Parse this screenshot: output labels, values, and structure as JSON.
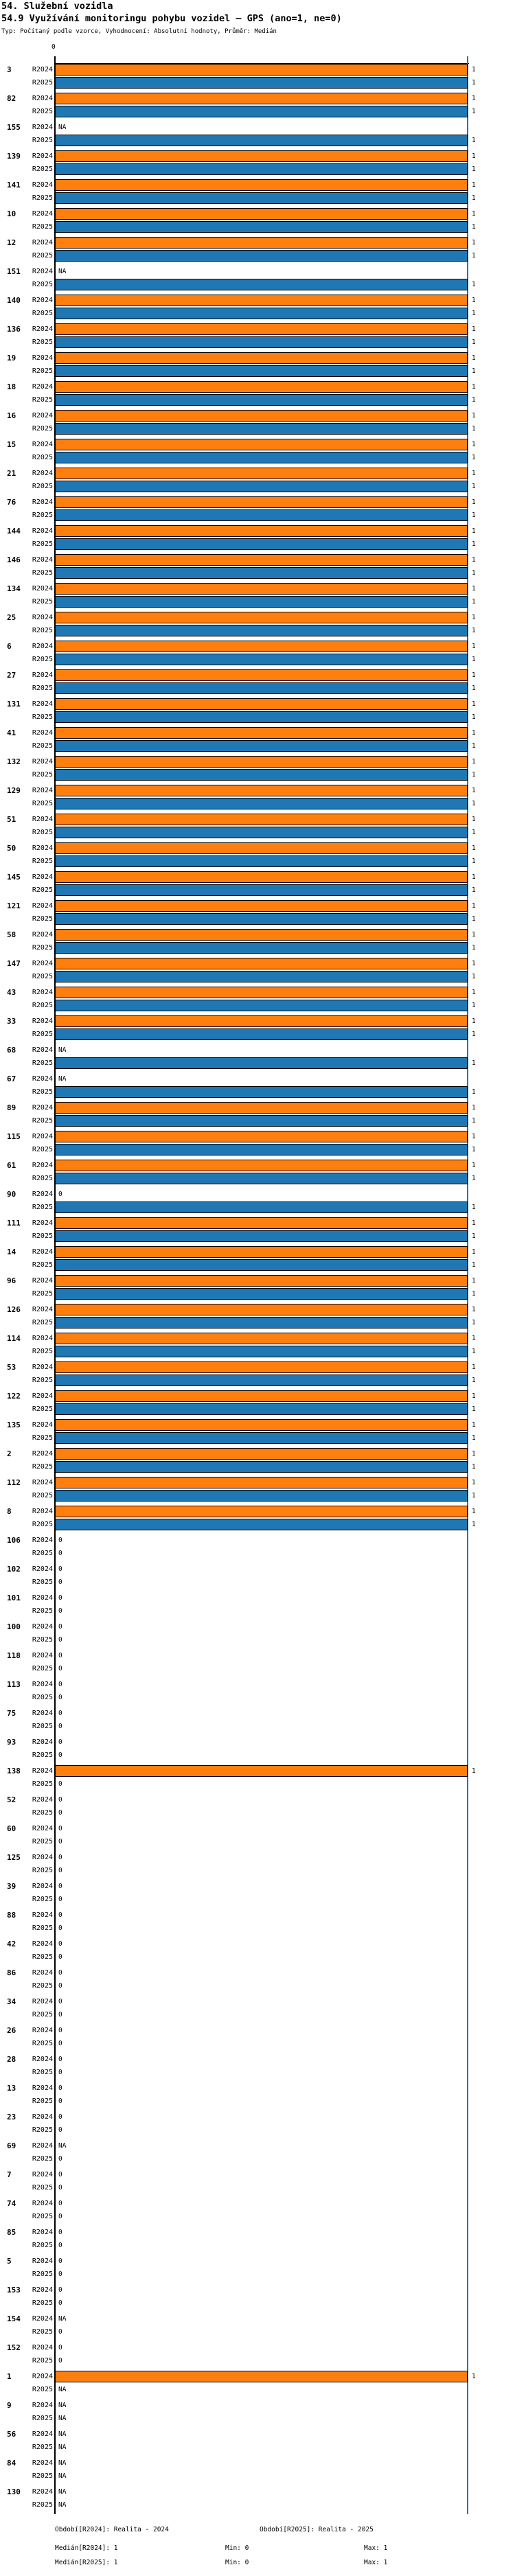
{
  "header": {
    "title": "54. Služební vozidla",
    "subtitle": "54.9 Využívání monitoringu pohybu vozidel – GPS (ano=1, ne=0)",
    "meta": "Typ: Počítaný podle vzorce, Vyhodnocení: Absolutní hodnoty, Průměr: Medián"
  },
  "chart_data": {
    "type": "bar",
    "orientation": "horizontal",
    "title": "54.9 Využívání monitoringu pohybu vozidel – GPS (ano=1, ne=0)",
    "xlabel": "",
    "ylabel": "",
    "xlim": [
      0,
      1
    ],
    "x_ticks": [
      "0"
    ],
    "grid": false,
    "series_labels": [
      "R2024",
      "R2025"
    ],
    "colors": {
      "R2024": "#ff7f0e",
      "R2025": "#1f77b4",
      "median_line": "#1f77b4"
    },
    "median_marker": {
      "R2024": 1,
      "R2025": 1
    },
    "na_text": "NA",
    "groups": [
      {
        "id": "3",
        "R2024": 1,
        "R2025": 1
      },
      {
        "id": "82",
        "R2024": 1,
        "R2025": 1
      },
      {
        "id": "155",
        "R2024": "NA",
        "R2025": 1
      },
      {
        "id": "139",
        "R2024": 1,
        "R2025": 1
      },
      {
        "id": "141",
        "R2024": 1,
        "R2025": 1
      },
      {
        "id": "10",
        "R2024": 1,
        "R2025": 1
      },
      {
        "id": "12",
        "R2024": 1,
        "R2025": 1
      },
      {
        "id": "151",
        "R2024": "NA",
        "R2025": 1
      },
      {
        "id": "140",
        "R2024": 1,
        "R2025": 1
      },
      {
        "id": "136",
        "R2024": 1,
        "R2025": 1
      },
      {
        "id": "19",
        "R2024": 1,
        "R2025": 1
      },
      {
        "id": "18",
        "R2024": 1,
        "R2025": 1
      },
      {
        "id": "16",
        "R2024": 1,
        "R2025": 1
      },
      {
        "id": "15",
        "R2024": 1,
        "R2025": 1
      },
      {
        "id": "21",
        "R2024": 1,
        "R2025": 1
      },
      {
        "id": "76",
        "R2024": 1,
        "R2025": 1
      },
      {
        "id": "144",
        "R2024": 1,
        "R2025": 1
      },
      {
        "id": "146",
        "R2024": 1,
        "R2025": 1
      },
      {
        "id": "134",
        "R2024": 1,
        "R2025": 1
      },
      {
        "id": "25",
        "R2024": 1,
        "R2025": 1
      },
      {
        "id": "6",
        "R2024": 1,
        "R2025": 1
      },
      {
        "id": "27",
        "R2024": 1,
        "R2025": 1
      },
      {
        "id": "131",
        "R2024": 1,
        "R2025": 1
      },
      {
        "id": "41",
        "R2024": 1,
        "R2025": 1
      },
      {
        "id": "132",
        "R2024": 1,
        "R2025": 1
      },
      {
        "id": "129",
        "R2024": 1,
        "R2025": 1
      },
      {
        "id": "51",
        "R2024": 1,
        "R2025": 1
      },
      {
        "id": "50",
        "R2024": 1,
        "R2025": 1
      },
      {
        "id": "145",
        "R2024": 1,
        "R2025": 1
      },
      {
        "id": "121",
        "R2024": 1,
        "R2025": 1
      },
      {
        "id": "58",
        "R2024": 1,
        "R2025": 1
      },
      {
        "id": "147",
        "R2024": 1,
        "R2025": 1
      },
      {
        "id": "43",
        "R2024": 1,
        "R2025": 1
      },
      {
        "id": "33",
        "R2024": 1,
        "R2025": 1
      },
      {
        "id": "68",
        "R2024": "NA",
        "R2025": 1
      },
      {
        "id": "67",
        "R2024": "NA",
        "R2025": 1
      },
      {
        "id": "89",
        "R2024": 1,
        "R2025": 1
      },
      {
        "id": "115",
        "R2024": 1,
        "R2025": 1
      },
      {
        "id": "61",
        "R2024": 1,
        "R2025": 1
      },
      {
        "id": "90",
        "R2024": 0,
        "R2025": 1
      },
      {
        "id": "111",
        "R2024": 1,
        "R2025": 1
      },
      {
        "id": "14",
        "R2024": 1,
        "R2025": 1
      },
      {
        "id": "96",
        "R2024": 1,
        "R2025": 1
      },
      {
        "id": "126",
        "R2024": 1,
        "R2025": 1
      },
      {
        "id": "114",
        "R2024": 1,
        "R2025": 1
      },
      {
        "id": "53",
        "R2024": 1,
        "R2025": 1
      },
      {
        "id": "122",
        "R2024": 1,
        "R2025": 1
      },
      {
        "id": "135",
        "R2024": 1,
        "R2025": 1
      },
      {
        "id": "2",
        "R2024": 1,
        "R2025": 1
      },
      {
        "id": "112",
        "R2024": 1,
        "R2025": 1
      },
      {
        "id": "8",
        "R2024": 1,
        "R2025": 1
      },
      {
        "id": "106",
        "R2024": 0,
        "R2025": 0
      },
      {
        "id": "102",
        "R2024": 0,
        "R2025": 0
      },
      {
        "id": "101",
        "R2024": 0,
        "R2025": 0
      },
      {
        "id": "100",
        "R2024": 0,
        "R2025": 0
      },
      {
        "id": "118",
        "R2024": 0,
        "R2025": 0
      },
      {
        "id": "113",
        "R2024": 0,
        "R2025": 0
      },
      {
        "id": "75",
        "R2024": 0,
        "R2025": 0
      },
      {
        "id": "93",
        "R2024": 0,
        "R2025": 0
      },
      {
        "id": "138",
        "R2024": 1,
        "R2025": 0
      },
      {
        "id": "52",
        "R2024": 0,
        "R2025": 0
      },
      {
        "id": "60",
        "R2024": 0,
        "R2025": 0
      },
      {
        "id": "125",
        "R2024": 0,
        "R2025": 0
      },
      {
        "id": "39",
        "R2024": 0,
        "R2025": 0
      },
      {
        "id": "88",
        "R2024": 0,
        "R2025": 0
      },
      {
        "id": "42",
        "R2024": 0,
        "R2025": 0
      },
      {
        "id": "86",
        "R2024": 0,
        "R2025": 0
      },
      {
        "id": "34",
        "R2024": 0,
        "R2025": 0
      },
      {
        "id": "26",
        "R2024": 0,
        "R2025": 0
      },
      {
        "id": "28",
        "R2024": 0,
        "R2025": 0
      },
      {
        "id": "13",
        "R2024": 0,
        "R2025": 0
      },
      {
        "id": "23",
        "R2024": 0,
        "R2025": 0
      },
      {
        "id": "69",
        "R2024": "NA",
        "R2025": 0
      },
      {
        "id": "7",
        "R2024": 0,
        "R2025": 0
      },
      {
        "id": "74",
        "R2024": 0,
        "R2025": 0
      },
      {
        "id": "85",
        "R2024": 0,
        "R2025": 0
      },
      {
        "id": "5",
        "R2024": 0,
        "R2025": 0
      },
      {
        "id": "153",
        "R2024": 0,
        "R2025": 0
      },
      {
        "id": "154",
        "R2024": "NA",
        "R2025": 0
      },
      {
        "id": "152",
        "R2024": 0,
        "R2025": 0
      },
      {
        "id": "1",
        "R2024": 1,
        "R2025": "NA"
      },
      {
        "id": "9",
        "R2024": "NA",
        "R2025": "NA"
      },
      {
        "id": "56",
        "R2024": "NA",
        "R2025": "NA"
      },
      {
        "id": "84",
        "R2024": "NA",
        "R2025": "NA"
      },
      {
        "id": "130",
        "R2024": "NA",
        "R2025": "NA"
      }
    ]
  },
  "axis": {
    "tick0": "0"
  },
  "footer": {
    "period_r2024": "Období[R2024]: Realita - 2024",
    "period_r2025": "Období[R2025]: Realita - 2025",
    "median_r2024": "Medián[R2024]: 1",
    "min_r2024": "Min: 0",
    "max_r2024": "Max: 1",
    "median_r2025": "Medián[R2025]: 1",
    "min_r2025": "Min: 0",
    "max_r2025": "Max: 1"
  }
}
